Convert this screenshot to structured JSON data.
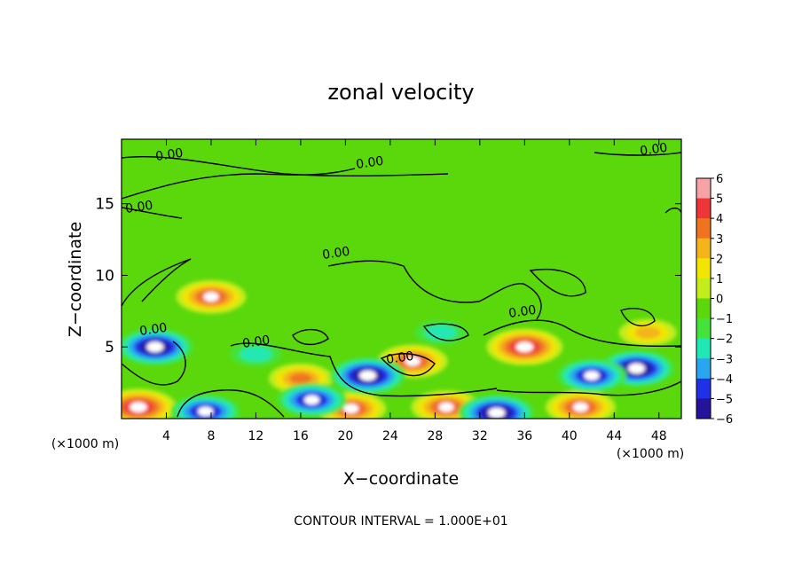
{
  "chart_data": {
    "type": "heatmap",
    "title": "zonal velocity",
    "xlabel": "X−coordinate",
    "ylabel": "Z−coordinate",
    "x_unit": "(×1000 m)",
    "z_unit": "(×1000 m)",
    "footer": "CONTOUR INTERVAL = 1.000E+01",
    "xlim": [
      0,
      50
    ],
    "ylim": [
      0,
      19.5
    ],
    "x_ticks": [
      "4",
      "8",
      "12",
      "16",
      "20",
      "24",
      "28",
      "32",
      "36",
      "40",
      "44",
      "48"
    ],
    "y_ticks": [
      "5",
      "10",
      "15"
    ],
    "colorbar": {
      "range": [
        -6,
        6
      ],
      "labels": [
        "6",
        "5",
        "4",
        "3",
        "2",
        "1",
        "0",
        "−1",
        "−2",
        "−3",
        "−4",
        "−5",
        "−6"
      ],
      "colors": [
        "#f6a2a6",
        "#ee3538",
        "#f07420",
        "#f4b41a",
        "#f2e600",
        "#c2ec1a",
        "#5ad80c",
        "#43e33c",
        "#20e8b4",
        "#2aa6f0",
        "#2030e6",
        "#26139c",
        "#7a1a9a"
      ]
    },
    "contour_label": "0.00",
    "contour_labels_count": 9,
    "anomalies": [
      {
        "name": "positive-core-1",
        "x": 8.0,
        "z": 8.5,
        "value": 5
      },
      {
        "name": "positive-core-2",
        "x": 36.0,
        "z": 5.0,
        "value": 6
      },
      {
        "name": "positive-core-3",
        "x": 26.0,
        "z": 4.0,
        "value": 5
      },
      {
        "name": "positive-core-4",
        "x": 16.0,
        "z": 2.8,
        "value": 4
      },
      {
        "name": "positive-core-5",
        "x": 47.0,
        "z": 6.0,
        "value": 3
      },
      {
        "name": "positive-floor-1",
        "x": 1.5,
        "z": 0.8,
        "value": 6
      },
      {
        "name": "positive-floor-2",
        "x": 20.5,
        "z": 0.7,
        "value": 5
      },
      {
        "name": "positive-floor-3",
        "x": 29.0,
        "z": 0.8,
        "value": 5
      },
      {
        "name": "positive-floor-4",
        "x": 41.0,
        "z": 0.8,
        "value": 5
      },
      {
        "name": "negative-core-1",
        "x": 3.0,
        "z": 5.0,
        "value": -6
      },
      {
        "name": "negative-core-2",
        "x": 22.0,
        "z": 3.0,
        "value": -6
      },
      {
        "name": "negative-core-3",
        "x": 46.0,
        "z": 3.5,
        "value": -6
      },
      {
        "name": "negative-core-4",
        "x": 42.0,
        "z": 3.0,
        "value": -5
      },
      {
        "name": "negative-core-5",
        "x": 33.5,
        "z": 0.4,
        "value": -6
      },
      {
        "name": "negative-core-6",
        "x": 28.5,
        "z": 6.0,
        "value": -2
      },
      {
        "name": "negative-core-7",
        "x": 12.0,
        "z": 4.5,
        "value": -2
      },
      {
        "name": "negative-core-8",
        "x": 17.0,
        "z": 1.3,
        "value": -5
      },
      {
        "name": "negative-core-9",
        "x": 7.5,
        "z": 0.5,
        "value": -5
      }
    ]
  }
}
